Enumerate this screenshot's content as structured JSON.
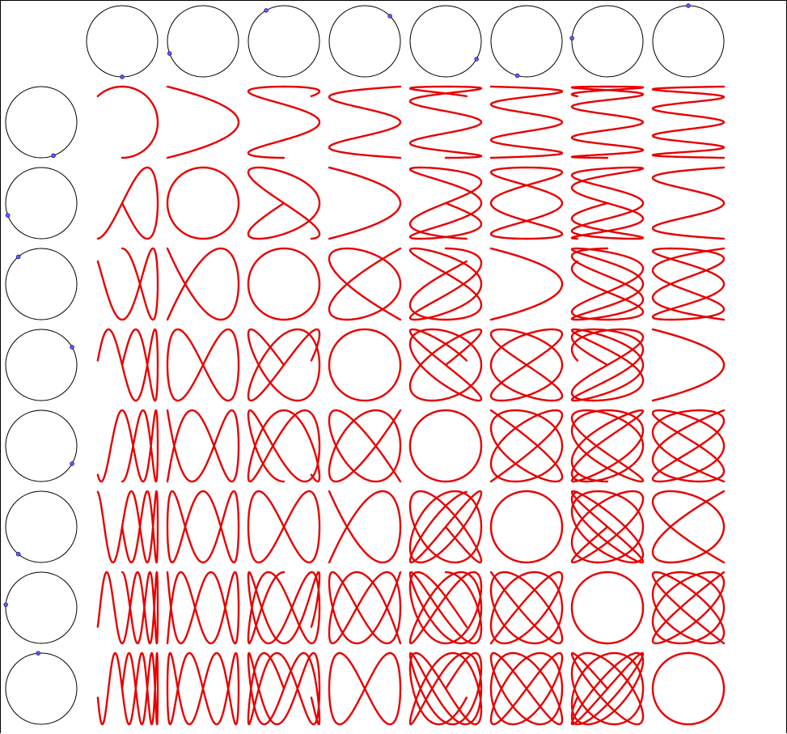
{
  "diagram": {
    "kind": "lissajous-table",
    "columns": [
      {
        "frequency": 1,
        "dot_angle_deg": 270
      },
      {
        "frequency": 2,
        "dot_angle_deg": 200
      },
      {
        "frequency": 3,
        "dot_angle_deg": 120
      },
      {
        "frequency": 4,
        "dot_angle_deg": 45
      },
      {
        "frequency": 5,
        "dot_angle_deg": 330
      },
      {
        "frequency": 6,
        "dot_angle_deg": 255
      },
      {
        "frequency": 7,
        "dot_angle_deg": 175
      },
      {
        "frequency": 8,
        "dot_angle_deg": 90
      }
    ],
    "rows": [
      {
        "frequency": 1,
        "dot_angle_deg": 290
      },
      {
        "frequency": 2,
        "dot_angle_deg": 200
      },
      {
        "frequency": 3,
        "dot_angle_deg": 130
      },
      {
        "frequency": 4,
        "dot_angle_deg": 30
      },
      {
        "frequency": 5,
        "dot_angle_deg": 330
      },
      {
        "frequency": 6,
        "dot_angle_deg": 230
      },
      {
        "frequency": 7,
        "dot_angle_deg": 175
      },
      {
        "frequency": 8,
        "dot_angle_deg": 95
      }
    ],
    "revealed_fraction": 0.62,
    "colors": {
      "circle_stroke": "#000000",
      "dot_fill": "#6666ff",
      "dot_stroke": "#0000aa",
      "curve_stroke": "#e60000",
      "background": "#ffffff",
      "border": "#000000"
    }
  }
}
